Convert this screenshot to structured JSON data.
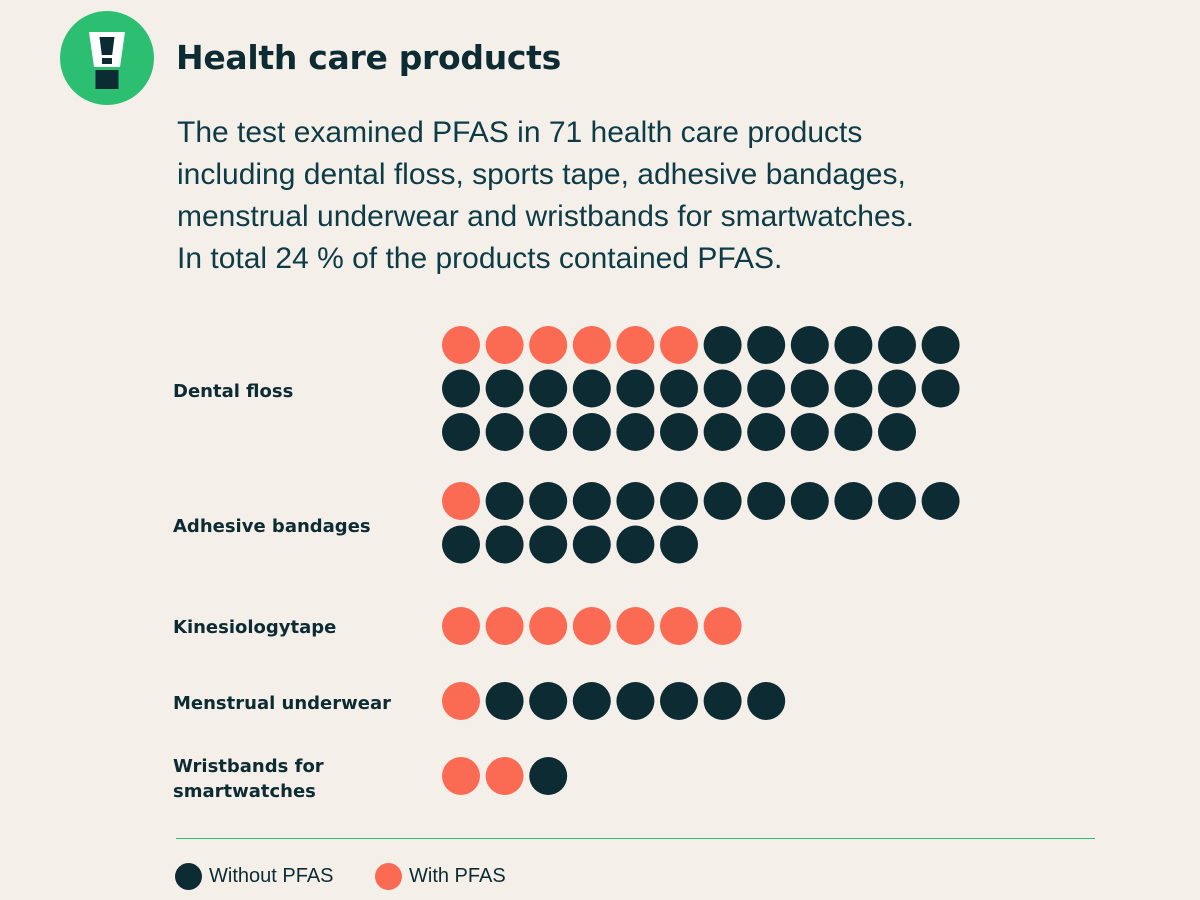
{
  "header": {
    "icon": "exclamation-tube-icon",
    "title": "Health care products"
  },
  "intro": {
    "lines": [
      "The test examined PFAS in 71 health care products",
      "including dental floss, sports tape, adhesive bandages,",
      "menstrual underwear and wristbands for smartwatches.",
      "In total 24 % of the products contained PFAS."
    ]
  },
  "colors": {
    "background": "#f4efe9",
    "with_pfas": "#fb6a52",
    "without_pfas": "#0d2b33",
    "accent": "#2dbf71"
  },
  "chart_data": {
    "type": "dot-matrix",
    "unit": "products",
    "categories": [
      {
        "label": "Dental floss",
        "with_pfas": 6,
        "without_pfas": 29,
        "total": 35
      },
      {
        "label": "Adhesive bandages",
        "with_pfas": 1,
        "without_pfas": 17,
        "total": 18
      },
      {
        "label": "Kinesiologytape",
        "with_pfas": 7,
        "without_pfas": 0,
        "total": 7
      },
      {
        "label": "Menstrual underwear",
        "with_pfas": 1,
        "without_pfas": 7,
        "total": 8
      },
      {
        "label": "Wristbands for\nsmartwatches",
        "with_pfas": 2,
        "without_pfas": 1,
        "total": 3
      }
    ],
    "legend": [
      {
        "label": "Without PFAS",
        "color": "#0d2b33"
      },
      {
        "label": "With PFAS",
        "color": "#fb6a52"
      }
    ],
    "legend_position": "bottom-left",
    "dots_per_row": 12
  }
}
